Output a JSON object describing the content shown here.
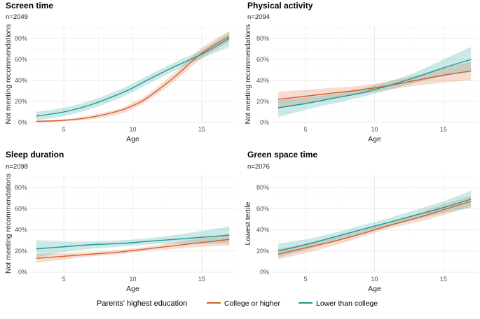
{
  "chart_data": {
    "type": "line",
    "facets": [
      {
        "title": "Screen time",
        "n": "n=2049",
        "xlabel": "Age",
        "ylabel": "Not meeting recommendations",
        "xlim": [
          2.5,
          17.5
        ],
        "ylim": [
          0,
          92
        ],
        "x_ticks": [
          5,
          10,
          15
        ],
        "y_ticks": [
          0,
          20,
          40,
          60,
          80
        ],
        "y_tick_labels": [
          "0%",
          "20%",
          "40%",
          "60%",
          "80%"
        ],
        "series": [
          {
            "name": "College or higher",
            "x": [
              3,
              5,
              7,
              9,
              10,
              11,
              13,
              15,
              17
            ],
            "values": [
              1,
              2,
              5,
              11,
              16,
              23,
              43,
              66,
              82
            ],
            "lower": [
              0,
              1,
              3,
              8,
              13,
              20,
              39,
              61,
              77
            ],
            "upper": [
              2,
              3,
              7,
              13,
              19,
              26,
              47,
              71,
              87
            ]
          },
          {
            "name": "Lower than college",
            "x": [
              3,
              5,
              7,
              9,
              10,
              11,
              13,
              15,
              17
            ],
            "values": [
              6,
              10,
              17,
              27,
              33,
              40,
              53,
              65,
              80
            ],
            "lower": [
              2,
              6,
              13,
              23,
              29,
              36,
              49,
              61,
              72
            ],
            "upper": [
              10,
              14,
              21,
              31,
              37,
              44,
              57,
              69,
              86
            ]
          }
        ]
      },
      {
        "title": "Physical activity",
        "n": "n=2094",
        "xlabel": "Age",
        "ylabel": "Not meeting recommendations",
        "xlim": [
          2.5,
          17.5
        ],
        "ylim": [
          0,
          92
        ],
        "x_ticks": [
          5,
          10,
          15
        ],
        "y_ticks": [
          0,
          20,
          40,
          60,
          80
        ],
        "y_tick_labels": [
          "0%",
          "20%",
          "40%",
          "60%",
          "80%"
        ],
        "series": [
          {
            "name": "College or higher",
            "x": [
              3,
              5,
              7,
              9,
              11,
              13,
              15,
              17
            ],
            "values": [
              22,
              25,
              28,
              31,
              35,
              40,
              45,
              49
            ],
            "lower": [
              13,
              18,
              23,
              27,
              31,
              35,
              38,
              40
            ],
            "upper": [
              29,
              31,
              33,
              35,
              39,
              45,
              52,
              58
            ]
          },
          {
            "name": "Lower than college",
            "x": [
              3,
              5,
              7,
              9,
              11,
              13,
              15,
              17
            ],
            "values": [
              14,
              18,
              23,
              28,
              35,
              43,
              52,
              60
            ],
            "lower": [
              5,
              12,
              18,
              24,
              31,
              38,
              44,
              48
            ],
            "upper": [
              21,
              24,
              27,
              32,
              39,
              48,
              60,
              72
            ]
          }
        ]
      },
      {
        "title": "Sleep duration",
        "n": "n=2098",
        "xlabel": "Age",
        "ylabel": "Not meeting recommendations",
        "xlim": [
          2.5,
          17.5
        ],
        "ylim": [
          0,
          92
        ],
        "x_ticks": [
          5,
          10,
          15
        ],
        "y_ticks": [
          0,
          20,
          40,
          60,
          80
        ],
        "y_tick_labels": [
          "0%",
          "20%",
          "40%",
          "60%",
          "80%"
        ],
        "series": [
          {
            "name": "College or higher",
            "x": [
              3,
              5,
              7,
              9,
              11,
              13,
              15,
              17
            ],
            "values": [
              13,
              15,
              17,
              19,
              22,
              25,
              28,
              31
            ],
            "lower": [
              9,
              12,
              15,
              17,
              20,
              22,
              24,
              25
            ],
            "upper": [
              17,
              18,
              19,
              21,
              24,
              28,
              32,
              36
            ]
          },
          {
            "name": "Lower than college",
            "x": [
              3,
              5,
              7,
              9,
              11,
              13,
              15,
              17
            ],
            "values": [
              22,
              24,
              26,
              27,
              29,
              31,
              33,
              35
            ],
            "lower": [
              14,
              19,
              22,
              24,
              26,
              27,
              27,
              27
            ],
            "upper": [
              30,
              29,
              29,
              30,
              32,
              35,
              39,
              43
            ]
          }
        ]
      },
      {
        "title": "Green space time",
        "n": "n=2076",
        "xlabel": "Age",
        "ylabel": "Lowest tertile",
        "xlim": [
          2.5,
          17.5
        ],
        "ylim": [
          0,
          92
        ],
        "x_ticks": [
          5,
          10,
          15
        ],
        "y_ticks": [
          0,
          20,
          40,
          60,
          80
        ],
        "y_tick_labels": [
          "0%",
          "20%",
          "40%",
          "60%",
          "80%"
        ],
        "series": [
          {
            "name": "College or higher",
            "x": [
              3,
              5,
              7,
              9,
              11,
              13,
              15,
              17
            ],
            "values": [
              17,
              23,
              29,
              36,
              44,
              51,
              59,
              67
            ],
            "lower": [
              12,
              18,
              25,
              33,
              41,
              47,
              54,
              62
            ],
            "upper": [
              22,
              27,
              33,
              39,
              47,
              55,
              64,
              72
            ]
          },
          {
            "name": "Lower than college",
            "x": [
              3,
              5,
              7,
              9,
              11,
              13,
              15,
              17
            ],
            "values": [
              20,
              26,
              33,
              40,
              47,
              54,
              61,
              69
            ],
            "lower": [
              14,
              21,
              29,
              36,
              43,
              50,
              56,
              61
            ],
            "upper": [
              27,
              31,
              37,
              44,
              51,
              59,
              67,
              77
            ]
          }
        ]
      }
    ],
    "legend": {
      "title": "Parents' highest education",
      "position": "bottom",
      "entries": [
        "College or higher",
        "Lower than college"
      ]
    }
  },
  "colors": {
    "college": "#d95f2a",
    "lower": "#1b9a93"
  }
}
